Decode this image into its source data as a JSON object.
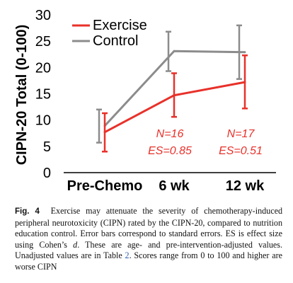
{
  "chart_data": {
    "type": "line",
    "categories": [
      "Pre-Chemo",
      "6 wk",
      "12 wk"
    ],
    "ylabel": "CIPN-20 Total (0-100)",
    "ylim": [
      0,
      30
    ],
    "yticks": [
      0,
      5,
      10,
      15,
      20,
      25,
      30
    ],
    "grid": false,
    "legend": "top-left",
    "series": [
      {
        "name": "Exercise",
        "color": "#e8312a",
        "values": [
          7.7,
          14.7,
          17.2
        ],
        "err_low": [
          4.0,
          10.6,
          12.2
        ],
        "err_high": [
          11.3,
          18.9,
          22.3
        ]
      },
      {
        "name": "Control",
        "color": "#8c8c8c",
        "values": [
          8.9,
          23.1,
          22.9
        ],
        "err_low": [
          5.7,
          19.3,
          17.8
        ],
        "err_high": [
          12.0,
          26.8,
          28.0
        ]
      }
    ],
    "annotations": [
      {
        "category": "6 wk",
        "lines": [
          "N=16",
          "ES=0.85"
        ]
      },
      {
        "category": "12 wk",
        "lines": [
          "N=17",
          "ES=0.51"
        ]
      }
    ]
  },
  "caption": {
    "label": "Fig. 4",
    "text_1": "Exercise may attenuate the severity of chemotherapy-induced peripheral neurotoxicity (CIPN) rated by the CIPN-20, compared to nutrition education control. Error bars correspond to standard errors. ES is effect size using Cohen’s ",
    "d": "d",
    "text_2": ". These are age- and pre-intervention-adjusted values. Unadjusted values are in Table ",
    "table_ref": "2",
    "text_3": ". Scores range from 0 to 100 and higher are worse CIPN"
  }
}
